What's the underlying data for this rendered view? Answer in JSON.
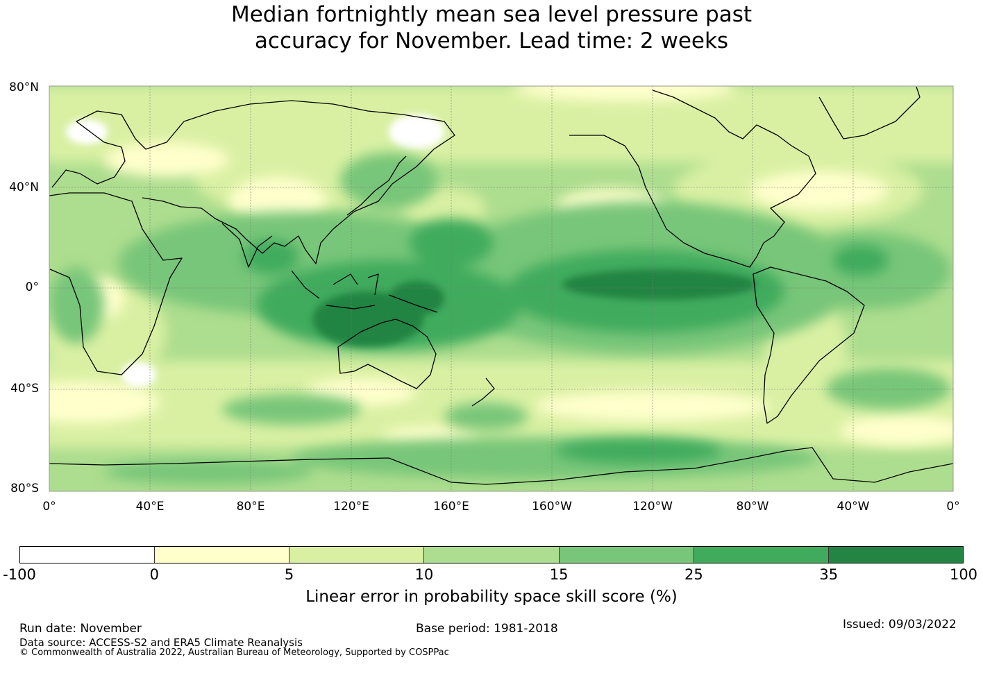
{
  "title": {
    "line1": "Median fortnightly mean sea level pressure past",
    "line2": "accuracy for November. Lead time: 2 weeks"
  },
  "axes": {
    "lat_labels": [
      "80°N",
      "40°N",
      "0°",
      "40°S",
      "80°S"
    ],
    "lon_labels": [
      "0°",
      "40°E",
      "80°E",
      "120°E",
      "160°E",
      "160°W",
      "120°W",
      "80°W",
      "40°W",
      "0°"
    ],
    "gridlines": true,
    "projection": "equirectangular, 0° to 360° longitude, 80°S to 80°N"
  },
  "colorbar": {
    "label": "Linear error in probability space skill score (%)",
    "ticks": [
      "-100",
      "0",
      "5",
      "10",
      "15",
      "25",
      "35",
      "100"
    ],
    "colors": [
      "#ffffff",
      "#ffffcc",
      "#d9f0a3",
      "#addd8e",
      "#78c679",
      "#41ab5d",
      "#238443"
    ]
  },
  "map_field": {
    "description_bands": [
      {
        "region": "Equatorial east Pacific",
        "class": "35 to 100"
      },
      {
        "region": "Maritime continent / Coral Sea",
        "class": "25 to 35"
      },
      {
        "region": "Tropical Indian Ocean",
        "class": "15 to 25"
      },
      {
        "region": "Southern mid-latitudes",
        "class": "0 to 5"
      },
      {
        "region": "Antarctic coast",
        "class": "15 to 25"
      }
    ]
  },
  "footer": {
    "run_date": "Run date: November",
    "base_period": "Base period: 1981-2018",
    "issued": "Issued: 09/03/2022",
    "data_source": "Data source: ACCESS-S2 and ERA5 Climate Reanalysis",
    "copyright": "© Commonwealth of Australia 2022, Australian Bureau of Meteorology, Supported by COSPPac"
  }
}
